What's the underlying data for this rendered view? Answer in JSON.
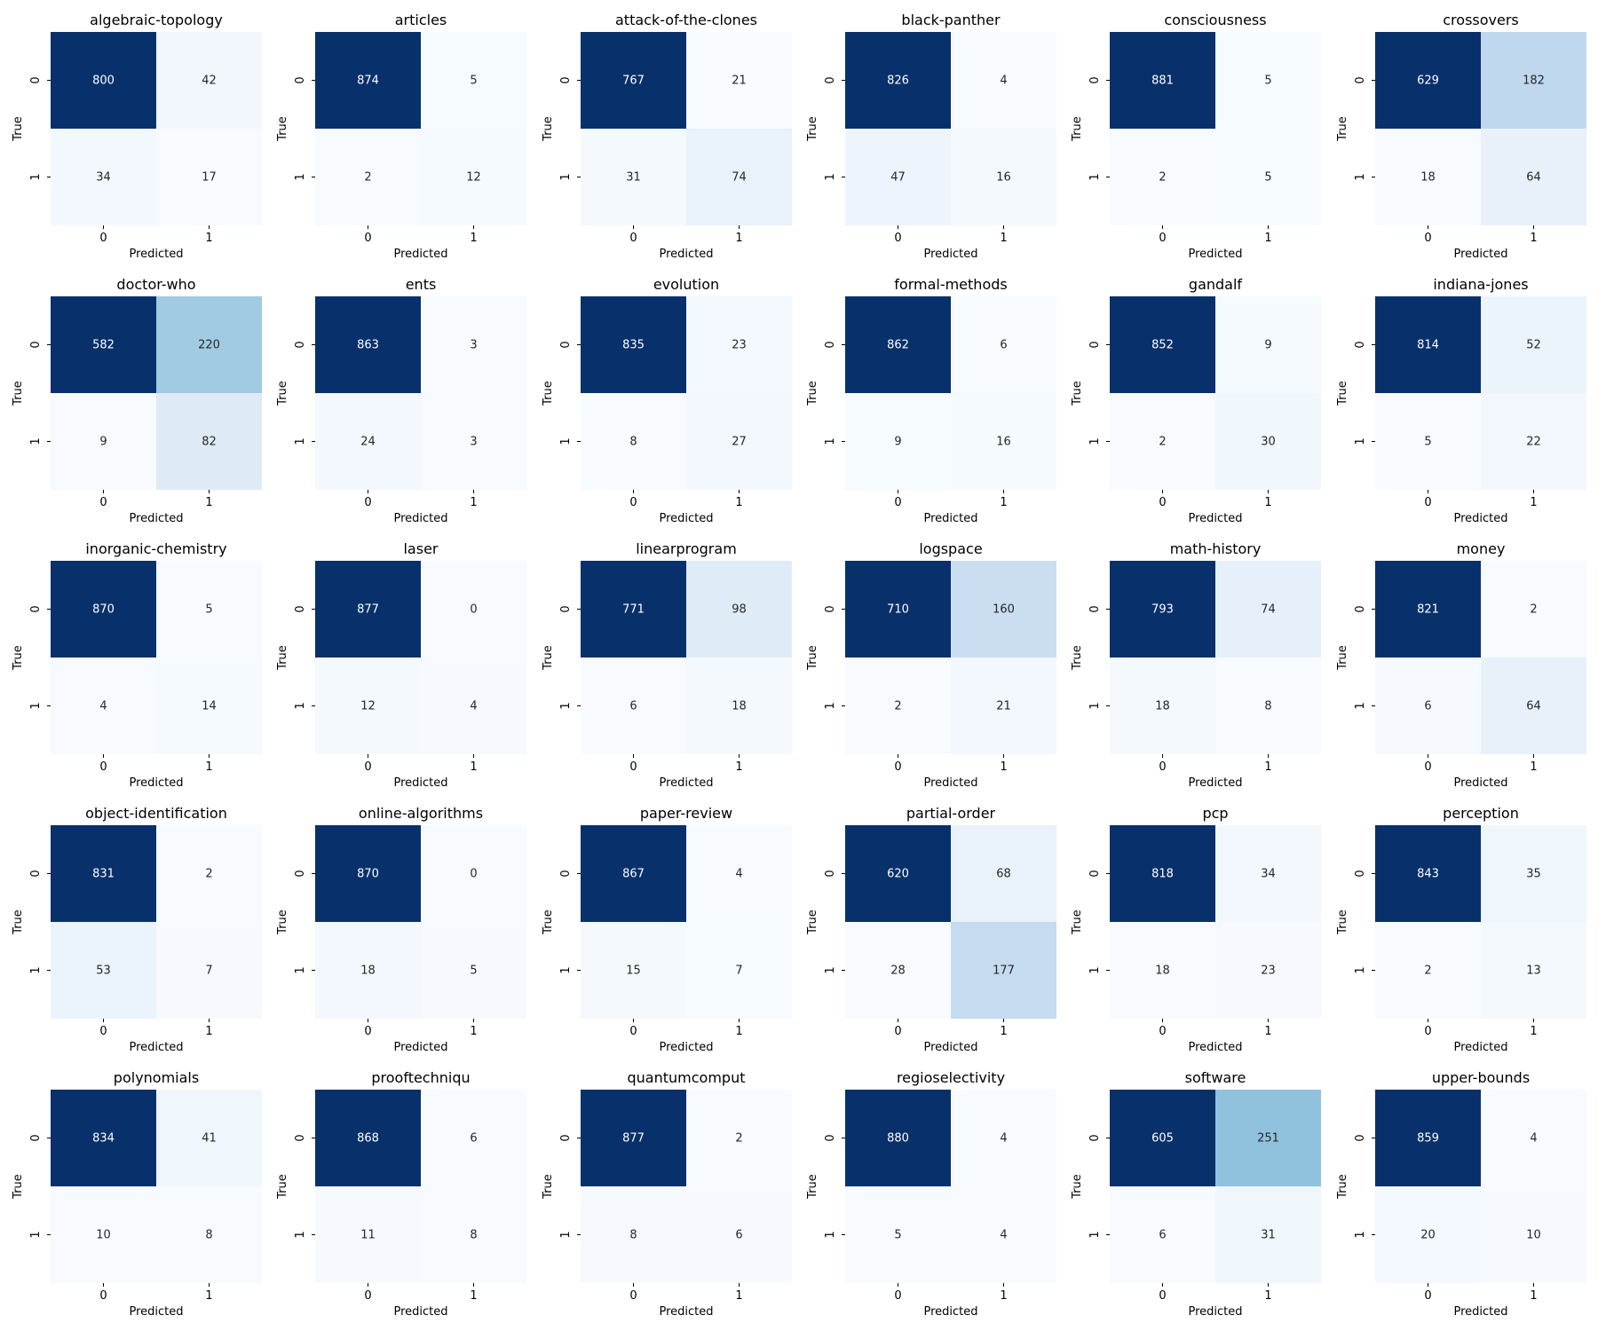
{
  "colors": {
    "min": "#f7fbff",
    "max": "#08306b",
    "text_dark": "#262626",
    "text_light": "#ffffff"
  },
  "chart_data": {
    "type": "heatmap",
    "colormap": "Blues",
    "xlabel": "Predicted",
    "ylabel": "True",
    "tick_labels": [
      "0",
      "1"
    ],
    "grid": false,
    "legend": "none",
    "panels": [
      {
        "title": "algebraic-topology",
        "matrix": [
          [
            800,
            42
          ],
          [
            34,
            17
          ]
        ]
      },
      {
        "title": "articles",
        "matrix": [
          [
            874,
            5
          ],
          [
            2,
            12
          ]
        ]
      },
      {
        "title": "attack-of-the-clones",
        "matrix": [
          [
            767,
            21
          ],
          [
            31,
            74
          ]
        ]
      },
      {
        "title": "black-panther",
        "matrix": [
          [
            826,
            4
          ],
          [
            47,
            16
          ]
        ]
      },
      {
        "title": "consciousness",
        "matrix": [
          [
            881,
            5
          ],
          [
            2,
            5
          ]
        ]
      },
      {
        "title": "crossovers",
        "matrix": [
          [
            629,
            182
          ],
          [
            18,
            64
          ]
        ]
      },
      {
        "title": "doctor-who",
        "matrix": [
          [
            582,
            220
          ],
          [
            9,
            82
          ]
        ]
      },
      {
        "title": "ents",
        "matrix": [
          [
            863,
            3
          ],
          [
            24,
            3
          ]
        ]
      },
      {
        "title": "evolution",
        "matrix": [
          [
            835,
            23
          ],
          [
            8,
            27
          ]
        ]
      },
      {
        "title": "formal-methods",
        "matrix": [
          [
            862,
            6
          ],
          [
            9,
            16
          ]
        ]
      },
      {
        "title": "gandalf",
        "matrix": [
          [
            852,
            9
          ],
          [
            2,
            30
          ]
        ]
      },
      {
        "title": "indiana-jones",
        "matrix": [
          [
            814,
            52
          ],
          [
            5,
            22
          ]
        ]
      },
      {
        "title": "inorganic-chemistry",
        "matrix": [
          [
            870,
            5
          ],
          [
            4,
            14
          ]
        ]
      },
      {
        "title": "laser",
        "matrix": [
          [
            877,
            0
          ],
          [
            12,
            4
          ]
        ]
      },
      {
        "title": "linearprogram",
        "matrix": [
          [
            771,
            98
          ],
          [
            6,
            18
          ]
        ]
      },
      {
        "title": "logspace",
        "matrix": [
          [
            710,
            160
          ],
          [
            2,
            21
          ]
        ]
      },
      {
        "title": "math-history",
        "matrix": [
          [
            793,
            74
          ],
          [
            18,
            8
          ]
        ]
      },
      {
        "title": "money",
        "matrix": [
          [
            821,
            2
          ],
          [
            6,
            64
          ]
        ]
      },
      {
        "title": "object-identification",
        "matrix": [
          [
            831,
            2
          ],
          [
            53,
            7
          ]
        ]
      },
      {
        "title": "online-algorithms",
        "matrix": [
          [
            870,
            0
          ],
          [
            18,
            5
          ]
        ]
      },
      {
        "title": "paper-review",
        "matrix": [
          [
            867,
            4
          ],
          [
            15,
            7
          ]
        ]
      },
      {
        "title": "partial-order",
        "matrix": [
          [
            620,
            68
          ],
          [
            28,
            177
          ]
        ]
      },
      {
        "title": "pcp",
        "matrix": [
          [
            818,
            34
          ],
          [
            18,
            23
          ]
        ]
      },
      {
        "title": "perception",
        "matrix": [
          [
            843,
            35
          ],
          [
            2,
            13
          ]
        ]
      },
      {
        "title": "polynomials",
        "matrix": [
          [
            834,
            41
          ],
          [
            10,
            8
          ]
        ]
      },
      {
        "title": "prooftechniqu",
        "matrix": [
          [
            868,
            6
          ],
          [
            11,
            8
          ]
        ]
      },
      {
        "title": "quantumcomput",
        "matrix": [
          [
            877,
            2
          ],
          [
            8,
            6
          ]
        ]
      },
      {
        "title": "regioselectivity",
        "matrix": [
          [
            880,
            4
          ],
          [
            5,
            4
          ]
        ]
      },
      {
        "title": "software",
        "matrix": [
          [
            605,
            251
          ],
          [
            6,
            31
          ]
        ]
      },
      {
        "title": "upper-bounds",
        "matrix": [
          [
            859,
            4
          ],
          [
            20,
            10
          ]
        ]
      }
    ]
  }
}
